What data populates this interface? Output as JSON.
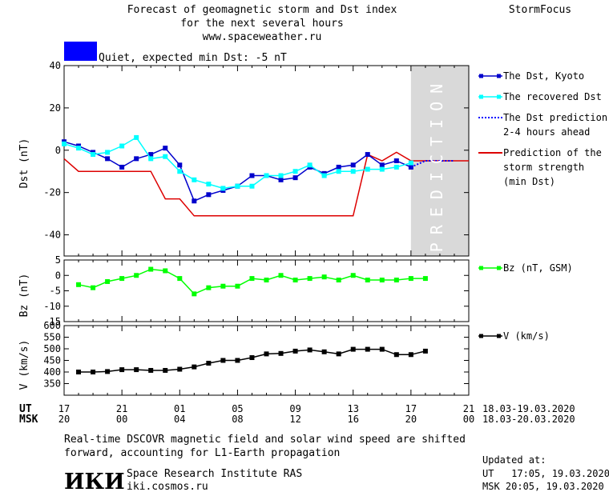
{
  "header": {
    "title_line1": "Forecast of geomagnetic storm and Dst index",
    "title_line2": "for the next several hours",
    "title_line3": "www.spaceweather.ru",
    "brand": "StormFocus",
    "status_color": "#0000ff",
    "status_text": "Quiet, expected min Dst: -5 nT"
  },
  "legend": {
    "dst_kyoto": "The Dst, Kyoto",
    "dst_recovered": "The recovered Dst",
    "prediction_line1": "The Dst prediction",
    "prediction_line2": "2-4 hours ahead",
    "storm_line1": "Prediction of the",
    "storm_line2": "storm strength",
    "storm_line3": "(min Dst)",
    "bz": "Bz (nT, GSM)",
    "v": "V (km/s)"
  },
  "prediction_label": "PREDICTION",
  "time_axis": {
    "ut_label": "UT",
    "msk_label": "MSK",
    "ut_ticks": [
      "17",
      "21",
      "01",
      "05",
      "09",
      "13",
      "17",
      "21"
    ],
    "msk_ticks": [
      "20",
      "00",
      "04",
      "08",
      "12",
      "16",
      "20",
      "00"
    ],
    "ut_range": "18.03-19.03.2020",
    "msk_range": "18.03-20.03.2020"
  },
  "footer": {
    "note_line1": "Real-time DSCOVR magnetic field and solar wind speed are shifted",
    "note_line2": "forward, accounting for L1-Earth propagation",
    "logo": "ИКИ",
    "institute": "Space Research Institute RAS",
    "site": "iki.cosmos.ru",
    "updated_label": "Updated at:",
    "updated_ut": "UT   17:05, 19.03.2020",
    "updated_msk": "MSK 20:05, 19.03.2020"
  },
  "colors": {
    "dst_kyoto": "#0000cc",
    "dst_recovered": "#00ffff",
    "dst_prediction": "#0000ff",
    "storm_strength": "#dd0000",
    "bz": "#00ff00",
    "v": "#000000",
    "prediction_band": "#d9d9d9"
  },
  "chart_data": [
    {
      "type": "line",
      "ylabel": "Dst (nT)",
      "ylim": [
        -50,
        40
      ],
      "yticks": [
        40,
        20,
        0,
        -20,
        -40
      ],
      "xlim": [
        17,
        45
      ],
      "prediction_start": 41,
      "series": [
        {
          "name": "The Dst, Kyoto",
          "x": [
            17,
            18,
            19,
            20,
            21,
            22,
            23,
            24,
            25,
            26,
            27,
            28,
            29,
            30,
            31,
            32,
            33,
            34,
            35,
            36,
            37,
            38,
            39,
            40,
            41
          ],
          "y": [
            4,
            2,
            -1,
            -4,
            -8,
            -4,
            -2,
            1,
            -7,
            -24,
            -21,
            -19,
            -17,
            -12,
            -12,
            -14,
            -13,
            -8,
            -11,
            -8,
            -7,
            -2,
            -7,
            -5,
            -8
          ]
        },
        {
          "name": "The recovered Dst",
          "x": [
            17,
            18,
            19,
            20,
            21,
            22,
            23,
            24,
            25,
            26,
            27,
            28,
            29,
            30,
            31,
            32,
            33,
            34,
            35,
            36,
            37,
            38,
            39,
            40,
            41
          ],
          "y": [
            3,
            1,
            -2,
            -1,
            2,
            6,
            -4,
            -3,
            -10,
            -14,
            -16,
            -18,
            -17,
            -17,
            -12,
            -12,
            -10,
            -7,
            -12,
            -10,
            -10,
            -9,
            -9,
            -8,
            -6
          ]
        },
        {
          "name": "The Dst prediction 2-4 hours ahead",
          "x": [
            41,
            42,
            43,
            44
          ],
          "y": [
            -8,
            -5,
            -5,
            -5
          ]
        },
        {
          "name": "Prediction of the storm strength (min Dst)",
          "x": [
            17,
            18,
            19,
            20,
            21,
            22,
            23,
            24,
            25,
            26,
            27,
            28,
            29,
            30,
            31,
            32,
            33,
            34,
            35,
            36,
            37,
            38,
            39,
            40,
            41,
            42,
            43,
            44,
            45
          ],
          "y": [
            -4,
            -10,
            -10,
            -10,
            -10,
            -10,
            -10,
            -23,
            -23,
            -31,
            -31,
            -31,
            -31,
            -31,
            -31,
            -31,
            -31,
            -31,
            -31,
            -31,
            -31,
            -2,
            -5,
            -1,
            -5,
            -5,
            -5,
            -5,
            -5
          ]
        }
      ]
    },
    {
      "type": "line",
      "ylabel": "Bz (nT)",
      "ylim": [
        -15,
        5
      ],
      "yticks": [
        5,
        0,
        -5,
        -10,
        -15
      ],
      "xlim": [
        17,
        45
      ],
      "series": [
        {
          "name": "Bz (nT, GSM)",
          "x": [
            18,
            19,
            20,
            21,
            22,
            23,
            24,
            25,
            26,
            27,
            28,
            29,
            30,
            31,
            32,
            33,
            34,
            35,
            36,
            37,
            38,
            39,
            40,
            41,
            42
          ],
          "y": [
            -3,
            -4,
            -2,
            -1,
            0,
            2,
            1.5,
            -1,
            -6,
            -4,
            -3.5,
            -3.5,
            -1,
            -1.5,
            0,
            -1.5,
            -1,
            -0.5,
            -1.5,
            0,
            -1.5,
            -1.5,
            -1.5,
            -1,
            -1
          ]
        }
      ]
    },
    {
      "type": "line",
      "ylabel": "V (km/s)",
      "ylim": [
        300,
        600
      ],
      "yticks": [
        600,
        550,
        500,
        450,
        400,
        350
      ],
      "xlim": [
        17,
        45
      ],
      "series": [
        {
          "name": "V (km/s)",
          "x": [
            18,
            19,
            20,
            21,
            22,
            23,
            24,
            25,
            26,
            27,
            28,
            29,
            30,
            31,
            32,
            33,
            34,
            35,
            36,
            37,
            38,
            39,
            40,
            41,
            42
          ],
          "y": [
            400,
            400,
            402,
            410,
            410,
            407,
            407,
            412,
            422,
            438,
            450,
            450,
            462,
            478,
            480,
            490,
            495,
            487,
            478,
            498,
            498,
            498,
            475,
            475,
            490
          ]
        }
      ]
    }
  ]
}
